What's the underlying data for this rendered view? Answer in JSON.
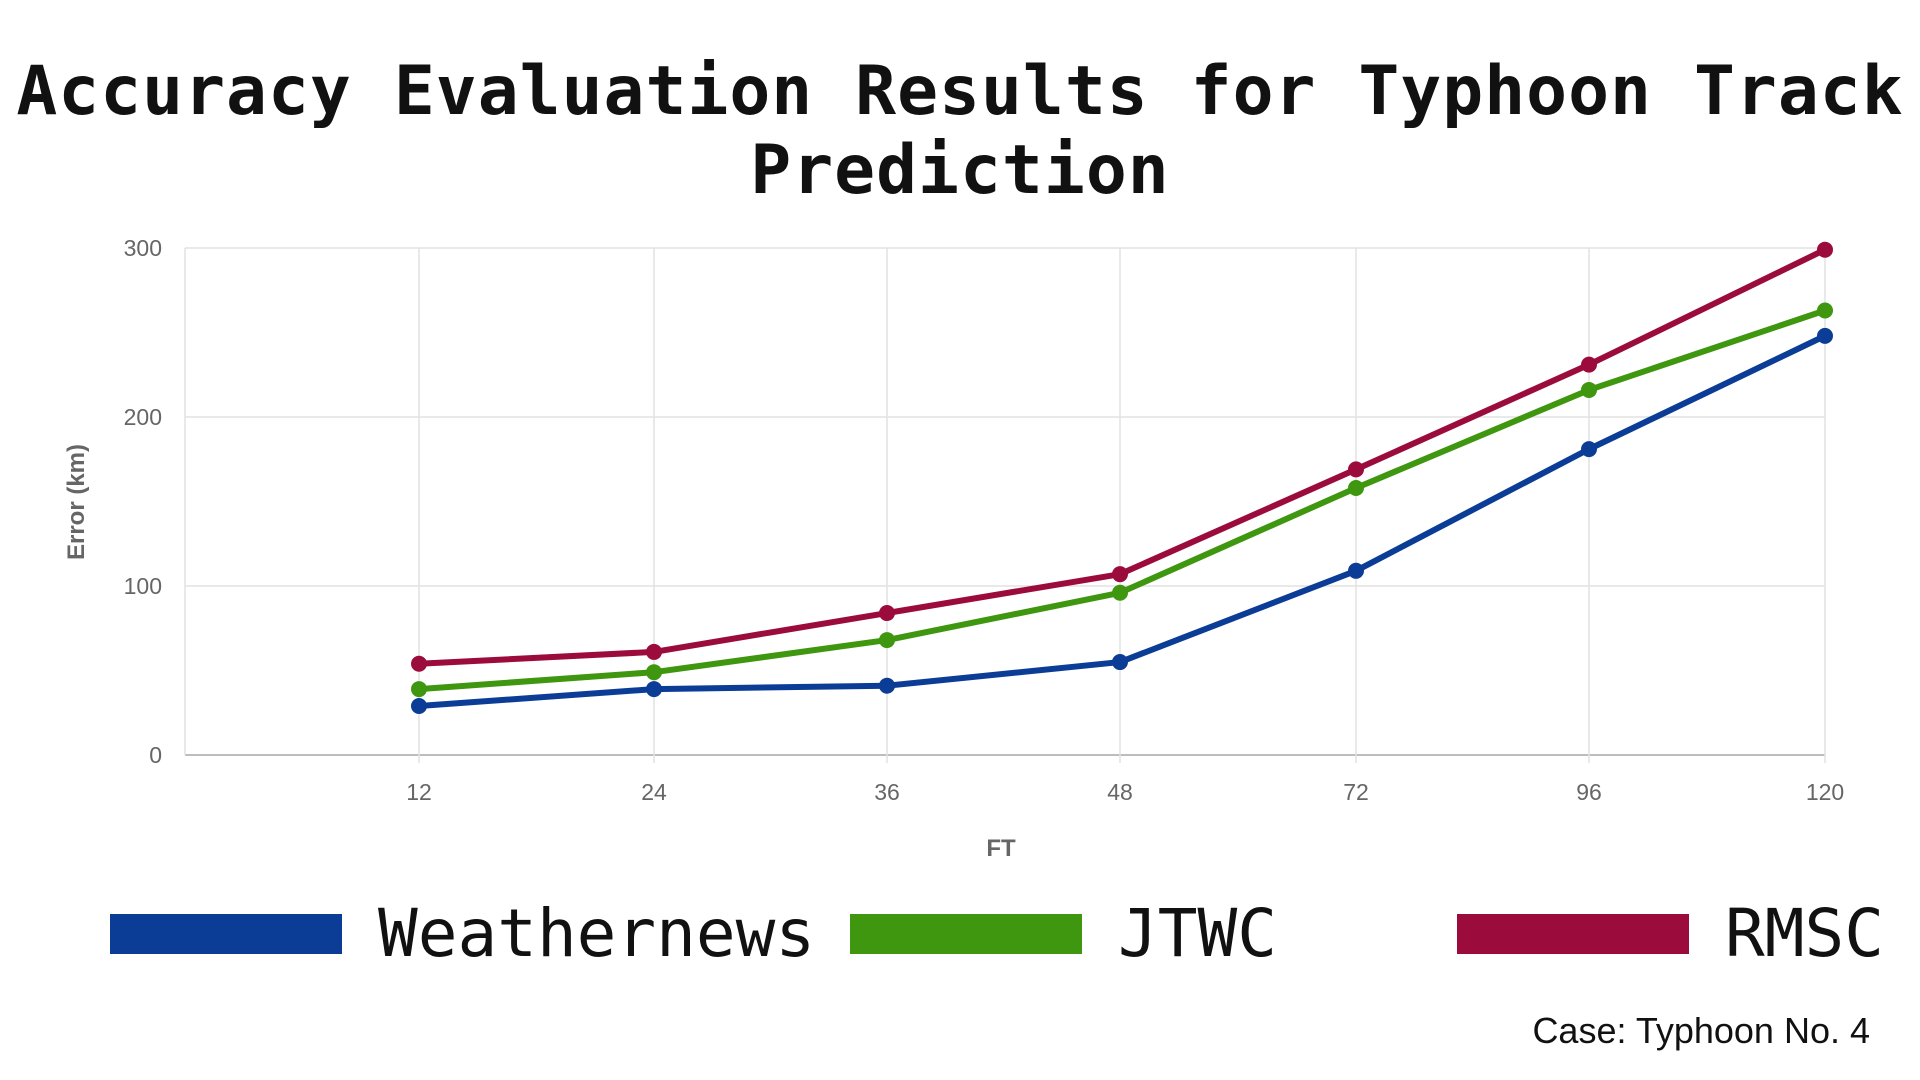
{
  "chart_data": {
    "type": "line",
    "title": "Accuracy Evaluation Results for Typhoon Track Prediction",
    "xlabel": "FT",
    "ylabel": "Error (km)",
    "categories": [
      "12",
      "24",
      "36",
      "48",
      "72",
      "96",
      "120"
    ],
    "ylim": [
      0,
      300
    ],
    "yticks": [
      "0",
      "100",
      "200",
      "300"
    ],
    "grid": true,
    "legend": "bottom",
    "series": [
      {
        "name": "Weathernews",
        "color": "#0b3d96",
        "values": [
          29,
          39,
          41,
          55,
          109,
          181,
          248
        ]
      },
      {
        "name": "JTWC",
        "color": "#3f960f",
        "values": [
          39,
          49,
          68,
          96,
          158,
          216,
          263
        ]
      },
      {
        "name": "RMSC",
        "color": "#9b0c3d",
        "values": [
          54,
          61,
          84,
          107,
          169,
          231,
          299
        ]
      }
    ]
  },
  "footer": {
    "case_label": "Case: Typhoon No. 4"
  }
}
